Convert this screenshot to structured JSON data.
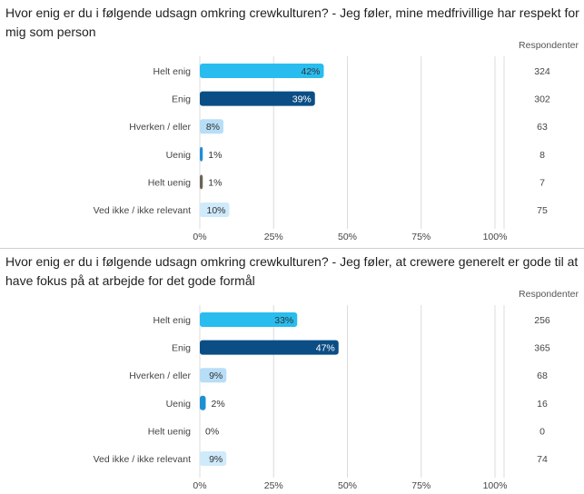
{
  "colors": {
    "helt_enig": "#29bcef",
    "enig": "#0b4e85",
    "hverken": "#b8def7",
    "uenig": "#1f8fd4",
    "helt_uenig": "#6b6457",
    "ved_ikke": "#cfeafb",
    "grid": "#dcdcdc",
    "text": "#444444"
  },
  "response_header": "Respondenter",
  "x_ticks": [
    "0%",
    "25%",
    "50%",
    "75%",
    "100%"
  ],
  "chart_data": [
    {
      "type": "bar",
      "title": "Hvor enig er du i følgende udsagn omkring crewkulturen? - Jeg føler, mine medfrivillige har respekt for mig som person",
      "categories": [
        "Helt enig",
        "Enig",
        "Hverken / eller",
        "Uenig",
        "Helt uenig",
        "Ved ikke / ikke relevant"
      ],
      "values": [
        42,
        39,
        8,
        1,
        1,
        10
      ],
      "value_labels": [
        "42%",
        "39%",
        "8%",
        "1%",
        "1%",
        "10%"
      ],
      "respondents": [
        "324",
        "302",
        "63",
        "8",
        "7",
        "75"
      ],
      "xlim": [
        0,
        100
      ],
      "unit": "%"
    },
    {
      "type": "bar",
      "title": "Hvor enig er du i følgende udsagn omkring crewkulturen? - Jeg føler, at crewere generelt er gode til at have fokus på at arbejde for det gode formål",
      "categories": [
        "Helt enig",
        "Enig",
        "Hverken / eller",
        "Uenig",
        "Helt uenig",
        "Ved ikke / ikke relevant"
      ],
      "values": [
        33,
        47,
        9,
        2,
        0,
        9
      ],
      "value_labels": [
        "33%",
        "47%",
        "9%",
        "2%",
        "0%",
        "9%"
      ],
      "respondents": [
        "256",
        "365",
        "68",
        "16",
        "0",
        "74"
      ],
      "xlim": [
        0,
        100
      ],
      "unit": "%"
    }
  ]
}
